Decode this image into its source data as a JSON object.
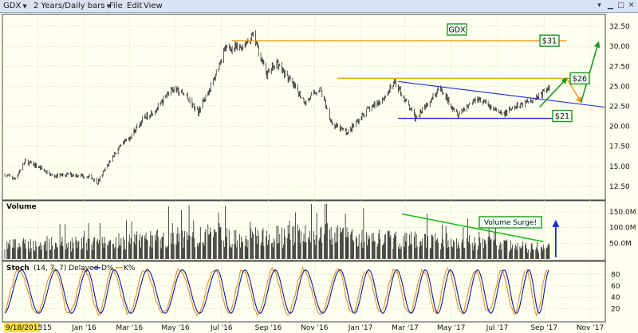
{
  "window": {
    "symbol": "GDX",
    "period": "2 Years/Daily bars",
    "menus": [
      "File",
      "Edit",
      "View"
    ]
  },
  "chart_data": [
    {
      "type": "candlestick",
      "series_name": "GDX",
      "y_ticks": [
        12.5,
        15.0,
        17.5,
        20.0,
        22.5,
        25.0,
        27.5,
        30.0,
        32.5
      ],
      "y_tick_labels": [
        "12.50",
        "15.00",
        "17.50",
        "20.00",
        "22.50",
        "25.00",
        "27.50",
        "30.00",
        "32.50"
      ],
      "ylim": [
        11.0,
        33.8
      ],
      "x_start": "2015-09-18",
      "x_end": "2017-11-20",
      "price_path": [
        [
          "2015-09-18",
          14.0
        ],
        [
          "2015-10-01",
          13.4
        ],
        [
          "2015-10-15",
          15.6
        ],
        [
          "2015-11-01",
          15.0
        ],
        [
          "2015-11-20",
          13.8
        ],
        [
          "2015-12-15",
          14.0
        ],
        [
          "2016-01-10",
          13.7
        ],
        [
          "2016-01-19",
          13.0
        ],
        [
          "2016-02-10",
          16.6
        ],
        [
          "2016-03-01",
          18.6
        ],
        [
          "2016-03-20",
          21.0
        ],
        [
          "2016-04-10",
          22.5
        ],
        [
          "2016-04-25",
          24.8
        ],
        [
          "2016-05-15",
          23.8
        ],
        [
          "2016-05-31",
          21.8
        ],
        [
          "2016-06-20",
          25.6
        ],
        [
          "2016-07-05",
          29.7
        ],
        [
          "2016-07-25",
          29.8
        ],
        [
          "2016-08-12",
          31.3
        ],
        [
          "2016-08-30",
          26.5
        ],
        [
          "2016-09-12",
          28.0
        ],
        [
          "2016-09-30",
          25.6
        ],
        [
          "2016-10-20",
          23.0
        ],
        [
          "2016-11-08",
          24.8
        ],
        [
          "2016-11-25",
          20.2
        ],
        [
          "2016-12-15",
          19.2
        ],
        [
          "2017-01-05",
          21.6
        ],
        [
          "2017-01-31",
          23.5
        ],
        [
          "2017-02-16",
          25.5
        ],
        [
          "2017-03-14",
          21.1
        ],
        [
          "2017-04-15",
          24.7
        ],
        [
          "2017-05-10",
          21.6
        ],
        [
          "2017-06-05",
          23.6
        ],
        [
          "2017-07-07",
          21.4
        ],
        [
          "2017-07-31",
          22.7
        ],
        [
          "2017-08-25",
          23.8
        ],
        [
          "2017-09-08",
          24.8
        ]
      ],
      "annotations": {
        "symbol_box": "GDX",
        "price_targets": [
          {
            "label": "$31",
            "value": 30.7
          },
          {
            "label": "$26",
            "value": 26.0
          },
          {
            "label": "$21",
            "value": 21.0
          }
        ],
        "horizontal_lines": [
          {
            "value": 30.7,
            "from": "2016-07-15",
            "to": "2017-10-01",
            "color": "#e8a020"
          },
          {
            "value": 26.0,
            "from": "2016-12-01",
            "to": "2017-10-10",
            "color": "#e8a020"
          },
          {
            "value": 21.0,
            "from": "2017-02-20",
            "to": "2017-09-25",
            "color": "#1a2ad8"
          }
        ],
        "trendline": {
          "from": [
            "2017-02-20",
            25.6
          ],
          "to": [
            "2017-11-20",
            22.4
          ],
          "color": "#1a2ad8"
        },
        "projection_arrows": [
          {
            "from": [
              "2017-08-26",
              22.4
            ],
            "to": [
              "2017-10-01",
              26.0
            ],
            "color": "#1d9a1d"
          },
          {
            "from": [
              "2017-10-01",
              26.0
            ],
            "to": [
              "2017-10-20",
              23.0
            ],
            "color": "#e8a020"
          },
          {
            "from": [
              "2017-10-20",
              23.0
            ],
            "to": [
              "2017-11-12",
              30.5
            ],
            "color": "#1d9a1d"
          }
        ]
      }
    },
    {
      "type": "bar",
      "title": "Volume",
      "y_tick_labels": [
        "50.0M",
        "100.0M",
        "150.0M"
      ],
      "y_ticks": [
        50,
        100,
        150
      ],
      "ylim": [
        0,
        180
      ],
      "volume_path": [
        [
          "2015-09-18",
          48
        ],
        [
          "2016-01-15",
          55
        ],
        [
          "2016-05-01",
          78
        ],
        [
          "2016-08-15",
          75
        ],
        [
          "2016-11-15",
          88
        ],
        [
          "2017-02-01",
          70
        ],
        [
          "2017-05-15",
          58
        ],
        [
          "2017-09-05",
          38
        ]
      ],
      "annotations": {
        "label": "Volume Surge!",
        "trendline": {
          "from": [
            "2017-02-25",
            143
          ],
          "to": [
            "2017-08-31",
            55
          ],
          "color": "#1dbe1d"
        },
        "arrow": {
          "at": "2017-09-08",
          "from": 5,
          "to": 120,
          "color": "#1a2ad8"
        }
      }
    },
    {
      "type": "line",
      "title": "Stoch",
      "params": "(14, 7, 7) Delayed",
      "series": [
        {
          "name": "D%",
          "color": "#0a1aa8"
        },
        {
          "name": "K%",
          "color": "#e8901a"
        }
      ],
      "y_ticks": [
        20,
        40,
        60,
        80
      ],
      "ylim": [
        0,
        100
      ],
      "cycle_peaks": [
        "2015-10-10",
        "2015-11-25",
        "2016-01-05",
        "2016-02-10",
        "2016-03-25",
        "2016-05-10",
        "2016-06-25",
        "2016-08-01",
        "2016-09-10",
        "2016-10-20",
        "2016-12-05",
        "2017-01-12",
        "2017-02-18",
        "2017-03-28",
        "2017-04-30",
        "2017-06-05",
        "2017-07-10",
        "2017-08-12",
        "2017-09-08"
      ]
    }
  ],
  "x_axis": {
    "labels": [
      {
        "date": "2015-11-01",
        "text": "Nov '15"
      },
      {
        "date": "2016-01-01",
        "text": "Jan '16"
      },
      {
        "date": "2016-03-01",
        "text": "Mar '16"
      },
      {
        "date": "2016-05-01",
        "text": "May '16"
      },
      {
        "date": "2016-07-01",
        "text": "Jul '16"
      },
      {
        "date": "2016-09-01",
        "text": "Sep '16"
      },
      {
        "date": "2016-11-01",
        "text": "Nov '16"
      },
      {
        "date": "2017-01-01",
        "text": "Jan '17"
      },
      {
        "date": "2017-03-01",
        "text": "Mar '17"
      },
      {
        "date": "2017-05-01",
        "text": "May '17"
      },
      {
        "date": "2017-07-01",
        "text": "Jul '17"
      },
      {
        "date": "2017-09-01",
        "text": "Sep '17"
      },
      {
        "date": "2017-11-01",
        "text": "Nov '17"
      }
    ],
    "start_label": "9/18/2015"
  },
  "colors": {
    "background": "#fffff0",
    "candles": "#111111",
    "grid": "#c9c9b4",
    "box_border": "#1d9a1d",
    "box_fill": "#f2fff2"
  }
}
